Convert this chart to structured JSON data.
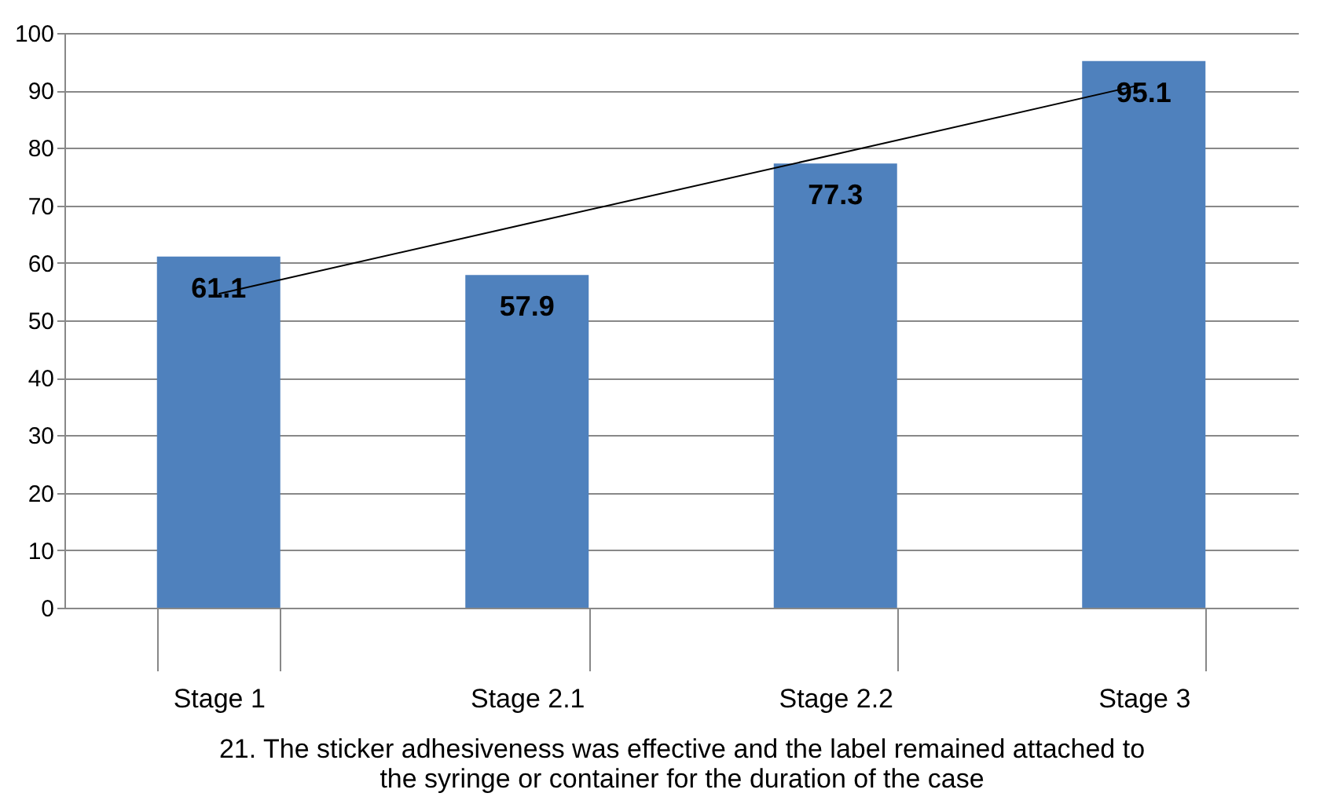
{
  "chart_data": {
    "type": "bar",
    "xlabel": "21. The sticker adhesiveness was effective and the label remained attached to the syringe or container for the duration of the case",
    "categories": [
      "Stage 1",
      "Stage 2.1",
      "Stage 2.2",
      "Stage 3"
    ],
    "series": [
      {
        "color": "#4f81bd",
        "values": [
          61.1,
          57.9,
          77.3,
          95.1
        ],
        "value_labels": [
          "61.1",
          "57.9",
          "77.3",
          "95.1"
        ]
      },
      {
        "type": "line",
        "color": "#000000",
        "values": [
          54.6,
          66.8,
          78.9,
          91.1
        ]
      }
    ],
    "ylim": [
      0,
      100
    ],
    "yticks": [
      0,
      10,
      20,
      30,
      40,
      50,
      60,
      70,
      80,
      90,
      100
    ],
    "grid": "y",
    "marker": "none"
  }
}
